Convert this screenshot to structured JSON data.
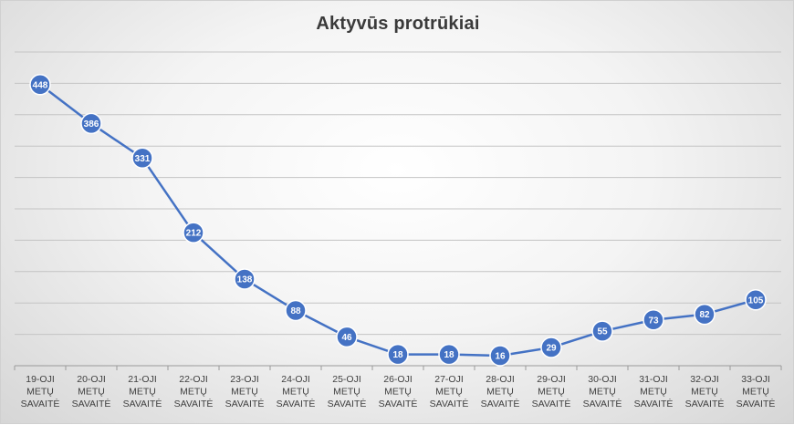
{
  "chart_data": {
    "type": "line",
    "title": "Aktyvūs protrūkiai",
    "categories": [
      [
        "19-OJI",
        "METŲ",
        "SAVAITĖ"
      ],
      [
        "20-OJI",
        "METŲ",
        "SAVAITĖ"
      ],
      [
        "21-OJI",
        "METŲ",
        "SAVAITĖ"
      ],
      [
        "22-OJI",
        "METŲ",
        "SAVAITĖ"
      ],
      [
        "23-OJI",
        "METŲ",
        "SAVAITĖ"
      ],
      [
        "24-OJI",
        "METŲ",
        "SAVAITĖ"
      ],
      [
        "25-OJI",
        "METŲ",
        "SAVAITĖ"
      ],
      [
        "26-OJI",
        "METŲ",
        "SAVAITĖ"
      ],
      [
        "27-OJI",
        "METŲ",
        "SAVAITĖ"
      ],
      [
        "28-OJI",
        "METŲ",
        "SAVAITĖ"
      ],
      [
        "29-OJI",
        "METŲ",
        "SAVAITĖ"
      ],
      [
        "30-OJI",
        "METŲ",
        "SAVAITĖ"
      ],
      [
        "31-OJI",
        "METŲ",
        "SAVAITĖ"
      ],
      [
        "32-OJI",
        "METŲ",
        "SAVAITĖ"
      ],
      [
        "33-OJI",
        "METŲ",
        "SAVAITĖ"
      ]
    ],
    "values": [
      448,
      386,
      331,
      212,
      138,
      88,
      46,
      18,
      18,
      16,
      29,
      55,
      73,
      82,
      105
    ],
    "ylim": [
      0,
      500
    ],
    "grid": true,
    "legend": "none",
    "series_color": "#4472c4"
  }
}
